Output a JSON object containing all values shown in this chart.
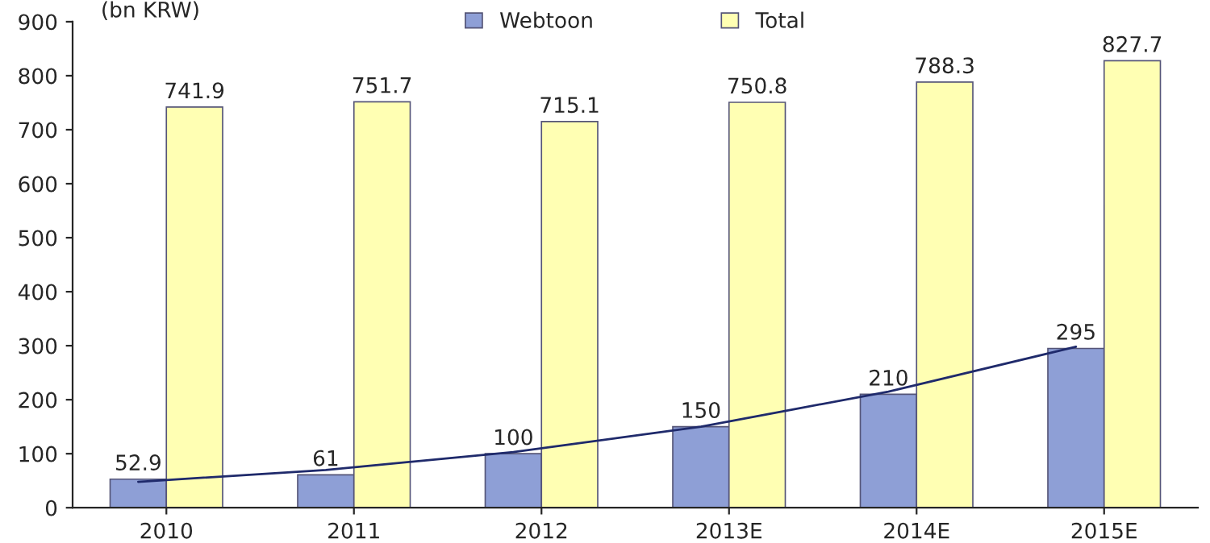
{
  "chart_data": {
    "type": "bar",
    "ylabel": "(bn KRW)",
    "categories": [
      "2010",
      "2011",
      "2012",
      "2013E",
      "2014E",
      "2015E"
    ],
    "series": [
      {
        "name": "Webtoon",
        "color": "#8e9fd6",
        "values": [
          52.9,
          61,
          100,
          150,
          210,
          295
        ],
        "value_labels": [
          "52.9",
          "61",
          "100",
          "150",
          "210",
          "295"
        ]
      },
      {
        "name": "Total",
        "color": "#ffffb3",
        "values": [
          741.9,
          751.7,
          715.1,
          750.8,
          788.3,
          827.7
        ],
        "value_labels": [
          "741.9",
          "751.7",
          "715.1",
          "750.8",
          "788.3",
          "827.7"
        ]
      },
      {
        "type": "line",
        "color": "#1f2a6b",
        "values": [
          48,
          70,
          103,
          150,
          215,
          298
        ]
      }
    ],
    "ylim": [
      0,
      900
    ],
    "yticks": [
      0,
      100,
      200,
      300,
      400,
      500,
      600,
      700,
      800,
      900
    ],
    "grid": false,
    "legend": "top",
    "marker": "none",
    "line_style": "solid"
  }
}
